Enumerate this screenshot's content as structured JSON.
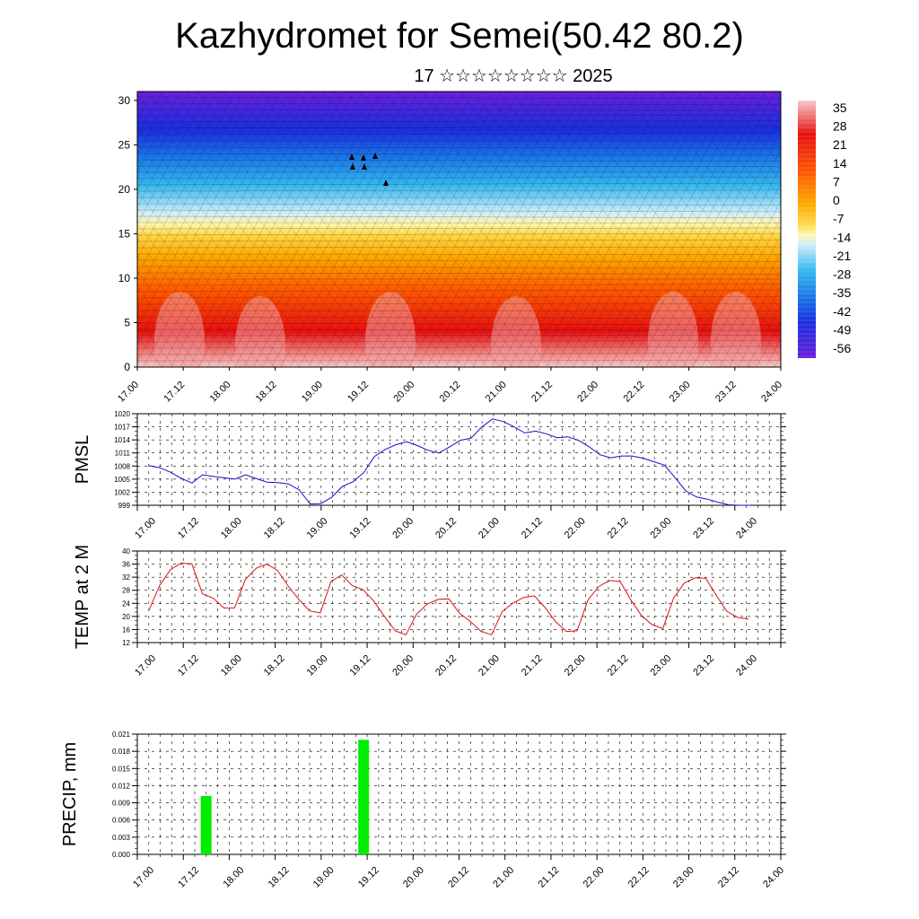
{
  "header": {
    "title": "Kazhydromet for Semei(50.42 80.2)",
    "subtitle": "17 ☆☆☆☆☆☆☆☆ 2025"
  },
  "time_labels": [
    "17.00",
    "17.12",
    "18.00",
    "18.12",
    "19.00",
    "19.12",
    "20.00",
    "20.12",
    "21.00",
    "21.12",
    "22.00",
    "22.12",
    "23.00",
    "23.12",
    "24.00"
  ],
  "chart_data": [
    {
      "type": "heatmap",
      "name": "temperature-cross-section",
      "x_ticks": [
        "17.00",
        "17.12",
        "18.00",
        "18.12",
        "19.00",
        "19.12",
        "20.00",
        "20.12",
        "21.00",
        "21.12",
        "22.00",
        "22.12",
        "23.00",
        "23.12",
        "24.00"
      ],
      "y_ticks": [
        "0",
        "5",
        "10",
        "15",
        "20",
        "25",
        "30"
      ],
      "ylim": [
        0,
        31
      ],
      "colorbar_labels": [
        "35",
        "28",
        "21",
        "14",
        "7",
        "0",
        "-7",
        "-14",
        "-21",
        "-28",
        "-35",
        "-42",
        "-49",
        "-56"
      ],
      "color_stops": [
        "#f8c8c8",
        "#e81010",
        "#ff5a00",
        "#ffa800",
        "#ffd84a",
        "#fff7b0",
        "#cfeefa",
        "#35b8f0",
        "#1c78e8",
        "#1a2fe0",
        "#6a1fdc"
      ]
    },
    {
      "type": "line",
      "ylabel": "PMSL",
      "ylim": [
        999,
        1020
      ],
      "y_ticks": [
        "1020",
        "1017",
        "1014",
        "1011",
        "1008",
        "1005",
        "1002",
        "999"
      ],
      "color": "#1010cc",
      "x": [
        0,
        0.25,
        0.5,
        0.75,
        1,
        1.25,
        1.5,
        1.75,
        2,
        2.25,
        2.5,
        2.75,
        3,
        3.25,
        3.5,
        3.75,
        4,
        4.25,
        4.5,
        4.75,
        5,
        5.25,
        5.5,
        5.75,
        6,
        6.25,
        6.5,
        6.75,
        7,
        7.25,
        7.5,
        7.75,
        8,
        8.25,
        8.5,
        8.75,
        9,
        9.25,
        9.5,
        9.75,
        10,
        10.25,
        10.5,
        10.75,
        11,
        11.25,
        11.5,
        11.75,
        12,
        12.25,
        12.5,
        12.75,
        13,
        13.25,
        13.5,
        13.75,
        14
      ],
      "values": [
        1008.1,
        1007.6,
        1006.6,
        1005.2,
        1004.1,
        1006.0,
        1005.6,
        1005.3,
        1005.0,
        1006.0,
        1005.1,
        1004.3,
        1004.2,
        1003.9,
        1002.5,
        999.3,
        999.4,
        1000.8,
        1003.3,
        1004.4,
        1006.5,
        1010.2,
        1011.8,
        1012.9,
        1013.6,
        1012.7,
        1011.6,
        1011.0,
        1012.4,
        1013.9,
        1014.4,
        1017.0,
        1018.8,
        1018.2,
        1017.0,
        1015.6,
        1016.0,
        1015.4,
        1014.5,
        1014.7,
        1013.9,
        1012.4,
        1010.6,
        1009.9,
        1010.3,
        1010.3,
        1009.8,
        1009.0,
        1008.2,
        1005.3,
        1002.3,
        1000.9,
        1000.4,
        999.7,
        999.1,
        999.0,
        999.0
      ],
      "plot_end_x": 13.5
    },
    {
      "type": "line",
      "ylabel": "TEMP at 2 M",
      "ylim": [
        12,
        40
      ],
      "y_ticks": [
        "40",
        "36",
        "32",
        "28",
        "24",
        "20",
        "16",
        "12"
      ],
      "color": "#e01010",
      "values": [
        21.9,
        29.5,
        34.3,
        36.3,
        36.1,
        26.9,
        25.6,
        22.6,
        22.6,
        31.3,
        34.7,
        36.0,
        34.1,
        29.3,
        25.2,
        21.7,
        21.1,
        30.7,
        32.7,
        29.4,
        28.2,
        24.7,
        20.0,
        15.6,
        14.4,
        20.7,
        23.8,
        25.2,
        25.4,
        21.0,
        18.5,
        15.5,
        14.4,
        21.5,
        24.1,
        25.8,
        26.3,
        22.7,
        18.3,
        15.4,
        15.6,
        25.0,
        29.1,
        31.0,
        30.7,
        25.1,
        20.3,
        17.5,
        16.3,
        25.6,
        30.2,
        31.8,
        31.7,
        26.4,
        21.5,
        19.7,
        19.2
      ]
    },
    {
      "type": "bar",
      "ylabel": "PRECIP, mm",
      "ylim": [
        0,
        0.021
      ],
      "y_ticks": [
        "0.021",
        "0.018",
        "0.015",
        "0.012",
        "0.009",
        "0.006",
        "0.003",
        "0.000"
      ],
      "color": "#00ee00",
      "bars": [
        {
          "x": 1.25,
          "value": 0.0102
        },
        {
          "x": 4.75,
          "value": 0.02
        }
      ]
    }
  ]
}
